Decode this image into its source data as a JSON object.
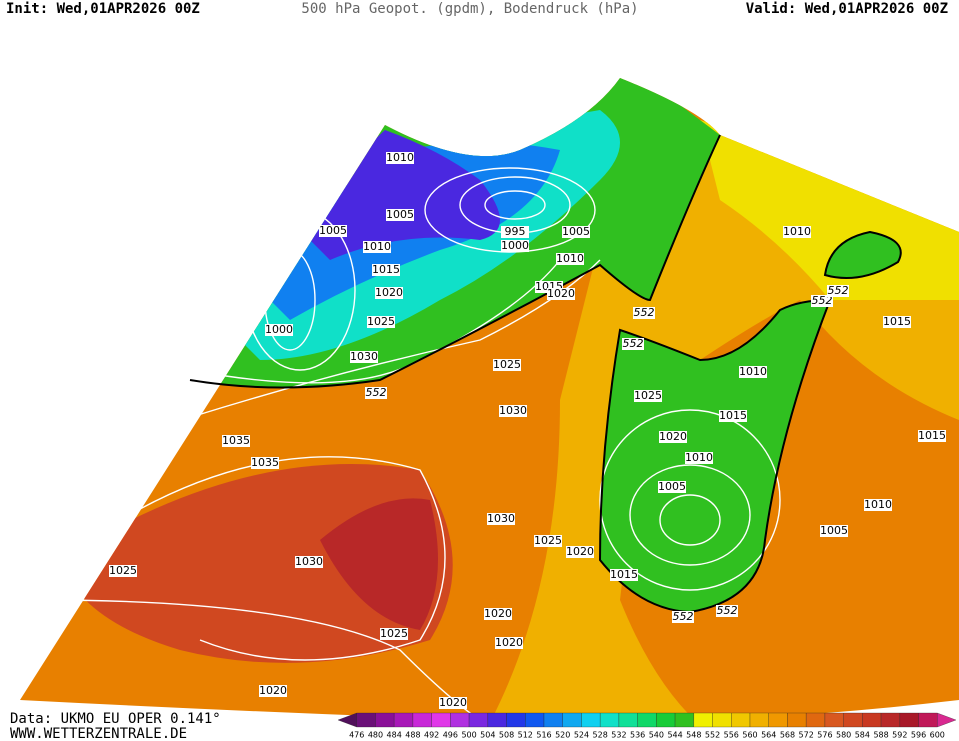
{
  "header": {
    "init": "Init: Wed,01APR2026 00Z",
    "title": "500 hPa Geopot. (gpdm), Bodendruck (hPa)",
    "valid": "Valid: Wed,01APR2026 00Z"
  },
  "footer": {
    "data": "Data: UKMO EU OPER 0.141°",
    "url": "WWW.WETTERZENTRALE.DE"
  },
  "colorbar": {
    "levels": [
      476,
      480,
      484,
      488,
      492,
      496,
      500,
      504,
      508,
      512,
      516,
      520,
      524,
      528,
      532,
      536,
      540,
      544,
      548,
      552,
      556,
      560,
      564,
      568,
      572,
      576,
      580,
      584,
      588,
      592,
      596,
      600
    ],
    "colors": [
      "#50105a",
      "#6a1078",
      "#8a1098",
      "#a818b8",
      "#c828d8",
      "#e038e8",
      "#b030e0",
      "#7a28e0",
      "#4a28e0",
      "#2238e8",
      "#1058f0",
      "#1080f0",
      "#10a8f0",
      "#10d0f0",
      "#10e0c8",
      "#10e098",
      "#10d868",
      "#18cc38",
      "#30c020",
      "#f0f000",
      "#f0e000",
      "#f0c800",
      "#f0b000",
      "#f09800",
      "#e88000",
      "#e06810",
      "#d85820",
      "#d04820",
      "#c83820",
      "#b82828",
      "#a81828",
      "#c01858",
      "#d82890"
    ]
  },
  "isobar_labels": [
    "1010",
    "1005",
    "1005",
    "1010",
    "1015",
    "1020",
    "1025",
    "1030",
    "1000",
    "995",
    "1000",
    "1005",
    "1010",
    "1015",
    "1020",
    "1025",
    "1030",
    "1035",
    "1035",
    "1025",
    "1030",
    "1025",
    "1020",
    "1030",
    "1025",
    "1020",
    "1015",
    "1020",
    "1020",
    "1020",
    "1010",
    "1015",
    "1010",
    "1025",
    "1015",
    "1020",
    "1010",
    "1005",
    "1015",
    "1010",
    "1005"
  ],
  "contour_labels": [
    "552",
    "552",
    "552",
    "552",
    "552",
    "552",
    "552"
  ]
}
